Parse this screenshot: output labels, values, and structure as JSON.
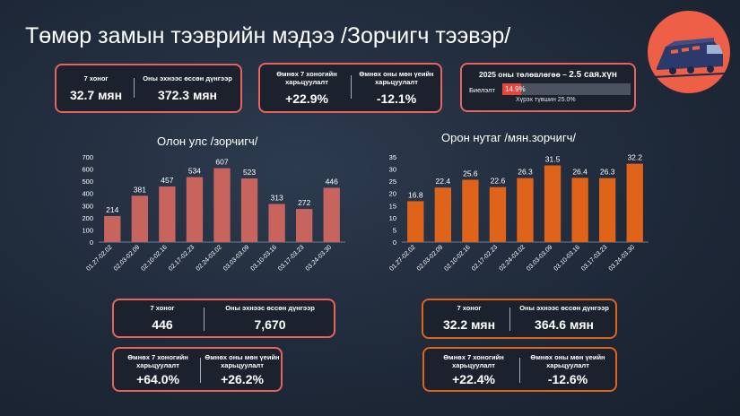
{
  "title": "Төмөр замын тээврийн мэдээ /Зорчигч тээвэр/",
  "logo_icon": "train-icon",
  "top_summary": {
    "week_label": "7 хоног",
    "week_value": "32.7 мян",
    "ytd_label": "Оны эхнээс өссөн дүнгээр",
    "ytd_value": "372.3 мян"
  },
  "top_compare": {
    "prev_week_label": "Өмнөх 7 хоногийн харьцуулалт",
    "prev_week_value": "+22.9%",
    "prev_year_label": "Өмнөх оны мөн үеийн харьцуулалт",
    "prev_year_value": "-12.1%"
  },
  "plan": {
    "title_prefix": "2025 оны төлөвлөгөө – ",
    "title_value": "2.5 сая.хүн",
    "label": "Биелэлт",
    "percent": "14.9%",
    "fraction": 0.149,
    "target_text": "Хүрэх түвшин 25.0%",
    "target_fraction": 0.25
  },
  "intl_summary": {
    "week_label": "7 хоног",
    "week_value": "446",
    "ytd_label": "Оны эхнээс өссөн дүнгээр",
    "ytd_value": "7,670",
    "prev_week_label": "Өмнөх 7 хоногийн харьцуулалт",
    "prev_week_value": "+64.0%",
    "prev_year_label": "Өмнөх оны мөн үеийн харьцуулалт",
    "prev_year_value": "+26.2%"
  },
  "dom_summary": {
    "week_label": "7 хоног",
    "week_value": "32.2 мян",
    "ytd_label": "Оны эхнээс өссөн дүнгээр",
    "ytd_value": "364.6 мян",
    "prev_week_label": "Өмнөх 7 хоногийн харьцуулалт",
    "prev_week_value": "+22.4%",
    "prev_year_label": "Өмнөх оны мөн үеийн харьцуулалт",
    "prev_year_value": "-12.6%"
  },
  "colors": {
    "intl_bar": "#c8645e",
    "dom_bar": "#e0631a",
    "red_accent": "#e8645a",
    "orange_accent": "#e0631a"
  },
  "chart_data": [
    {
      "type": "bar",
      "title": "Олон улс /зорчигч/",
      "categories": [
        "01.27-02.02",
        "02.03-02.09",
        "02.10-02.16",
        "02.17-02.23",
        "02.24-03.02",
        "03.03-03.09",
        "03.10-03.16",
        "03.17-03.23",
        "03.24-03.30"
      ],
      "values": [
        214,
        381,
        457,
        534,
        607,
        523,
        313,
        272,
        446
      ],
      "ylim": [
        0,
        700
      ],
      "yticks": [
        0,
        100,
        200,
        300,
        400,
        500,
        600,
        700
      ],
      "grid": false
    },
    {
      "type": "bar",
      "title": "Орон нутаг /мян.зорчигч/",
      "categories": [
        "01.27-02.02",
        "02.03-02.09",
        "02.10-02.16",
        "02.17-02.23",
        "02.24-03.02",
        "03.03-03.09",
        "03.10-03.16",
        "03.17-03.23",
        "03.24-03.30"
      ],
      "values": [
        16.8,
        22.4,
        25.6,
        22.6,
        26.3,
        31.5,
        26.4,
        26.3,
        32.2
      ],
      "ylim": [
        0,
        35
      ],
      "yticks": [
        0,
        5,
        10,
        15,
        20,
        25,
        30,
        35
      ],
      "grid": false
    }
  ]
}
